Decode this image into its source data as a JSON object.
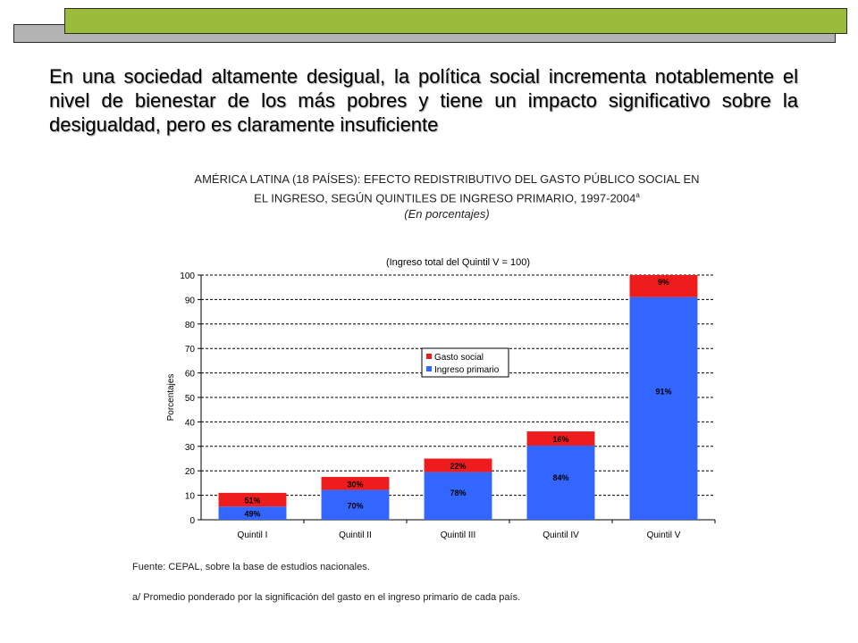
{
  "slide": {
    "headline": "En una sociedad altamente desigual, la política social incrementa notablemente el nivel de bienestar de los más pobres y tiene un impacto significativo sobre la desigualdad, pero es claramente insuficiente",
    "title_line1": "AMÉRICA LATINA (18 PAÍSES): EFECTO REDISTRIBUTIVO DEL GASTO PÚBLICO SOCIAL EN",
    "title_line2": "EL INGRESO, SEGÚN QUINTILES DE INGRESO PRIMARIO, 1997-2004",
    "title_sup": "a",
    "subtitle": "(En porcentajes)",
    "source": "Fuente: CEPAL, sobre la base de estudios nacionales.",
    "footnote": "a/ Promedio ponderado por la significación del gasto en el ingreso primario de cada país.",
    "accent_color": "#9bbb3a"
  },
  "chart_data": {
    "type": "bar",
    "stacked": true,
    "title": "(Ingreso total del Quintil V = 100)",
    "xlabel": "",
    "ylabel": "Porcentajes",
    "ylim": [
      0,
      100
    ],
    "yticks": [
      0,
      10,
      20,
      30,
      40,
      50,
      60,
      70,
      80,
      90,
      100
    ],
    "grid": "horizontal dashed",
    "legend_position": "center",
    "categories": [
      "Quintil I",
      "Quintil II",
      "Quintil III",
      "Quintil IV",
      "Quintil V"
    ],
    "series": [
      {
        "name": "Ingreso primario",
        "color": "#3366ff",
        "values": [
          5.4,
          12.2,
          19.5,
          30.3,
          91
        ],
        "labels": [
          "49%",
          "70%",
          "78%",
          "84%",
          "91%"
        ]
      },
      {
        "name": "Gasto social",
        "color": "#ee1c1c",
        "values": [
          5.6,
          5.3,
          5.5,
          5.8,
          9
        ],
        "labels": [
          "51%",
          "30%",
          "22%",
          "16%",
          "9%"
        ]
      }
    ]
  }
}
